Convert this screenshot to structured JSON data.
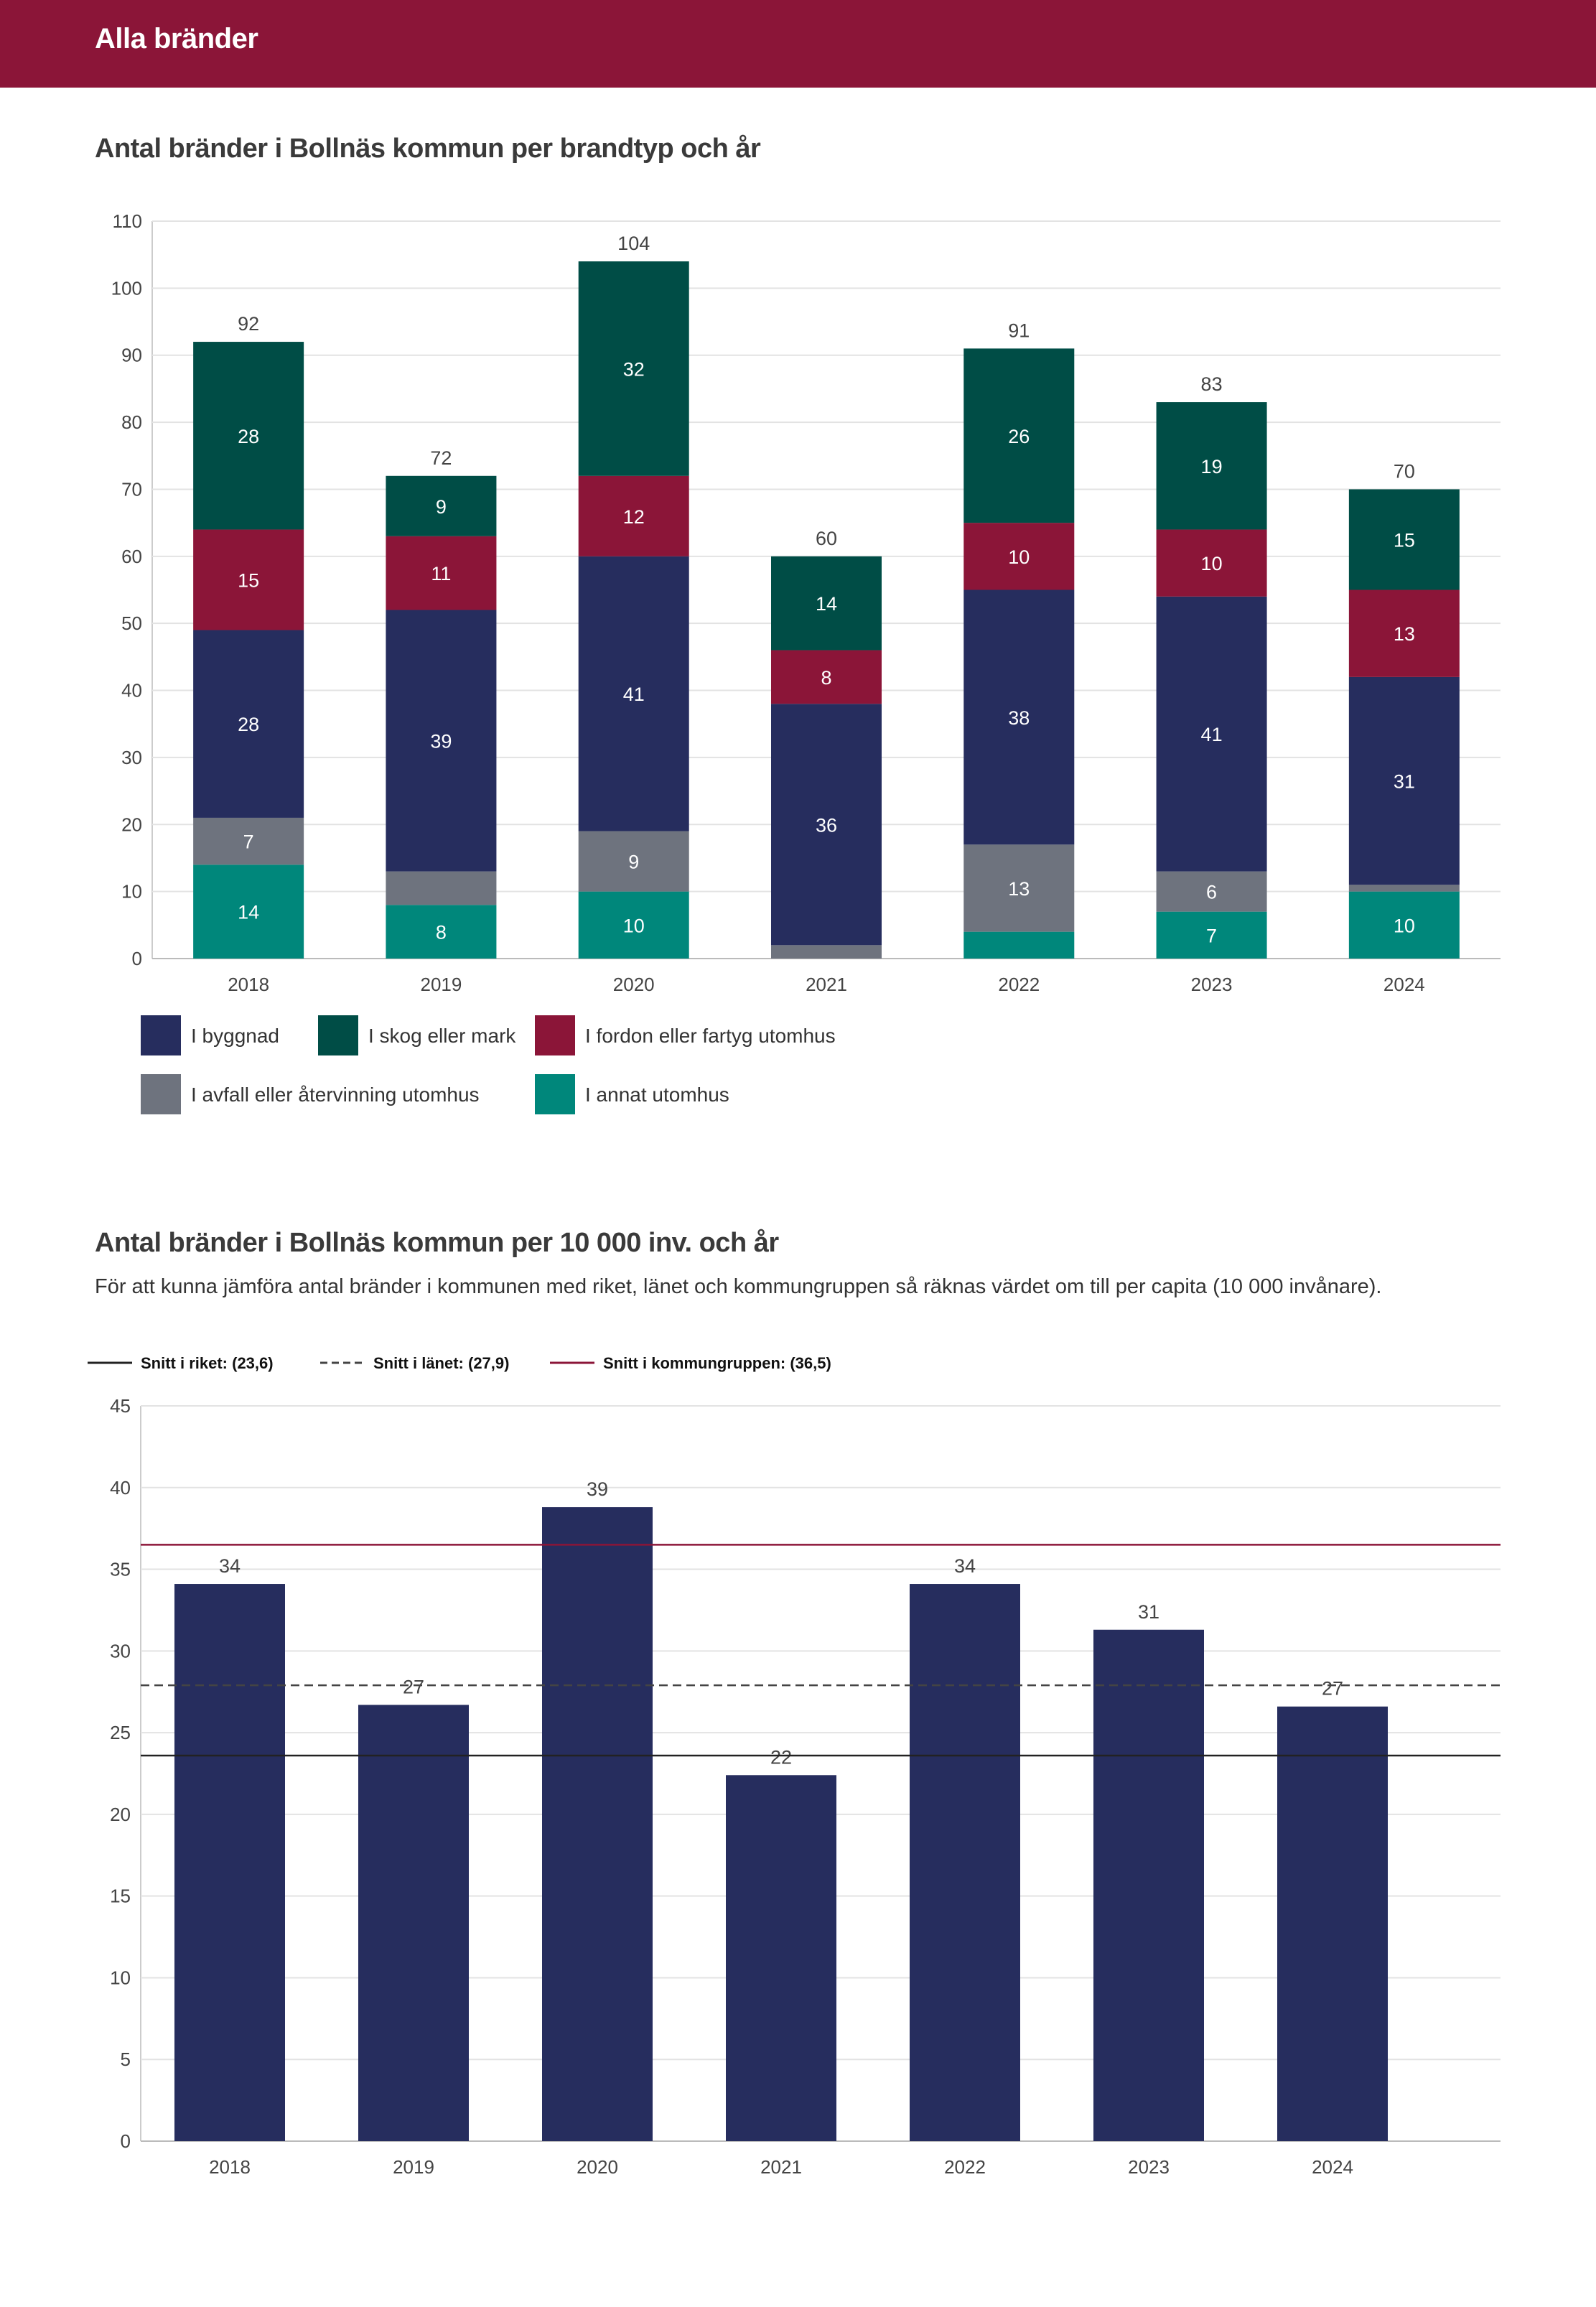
{
  "header": {
    "title": "Alla bränder"
  },
  "section1": {
    "title": "Antal bränder i Bollnäs kommun per brandtyp och år"
  },
  "section2": {
    "title": "Antal bränder i Bollnäs kommun per 10 000 inv. och år",
    "subtitle": "För att kunna jämföra antal bränder i kommunen med riket, länet och kommungruppen så räknas värdet om till per capita (10 000 invånare)."
  },
  "colors": {
    "header": "#8b1538",
    "byggnad": "#262d5e",
    "skog": "#004d46",
    "fordon": "#8b1538",
    "avfall": "#6e737e",
    "annat": "#00877b",
    "bar2": "#262d5e"
  },
  "chart_data": [
    {
      "type": "bar",
      "stacked": true,
      "title": "Antal bränder i Bollnäs kommun per brandtyp och år",
      "categories": [
        "2018",
        "2019",
        "2020",
        "2021",
        "2022",
        "2023",
        "2024"
      ],
      "ylim": [
        0,
        110
      ],
      "yticks": [
        0,
        10,
        20,
        30,
        40,
        50,
        60,
        70,
        80,
        90,
        100,
        110
      ],
      "totals": [
        92,
        72,
        104,
        60,
        91,
        83,
        70
      ],
      "series": [
        {
          "name": "I annat utomhus",
          "key": "annat",
          "values": [
            14,
            8,
            10,
            0,
            4,
            7,
            10
          ],
          "labels": [
            "14",
            "8",
            "10",
            "",
            "",
            "7",
            "10"
          ]
        },
        {
          "name": "I avfall eller återvinning utomhus",
          "key": "avfall",
          "values": [
            7,
            5,
            9,
            2,
            13,
            6,
            1
          ],
          "labels": [
            "7",
            "",
            "9",
            "",
            "13",
            "6",
            ""
          ]
        },
        {
          "name": "I byggnad",
          "key": "byggnad",
          "values": [
            28,
            39,
            41,
            36,
            38,
            41,
            31
          ],
          "labels": [
            "28",
            "39",
            "41",
            "36",
            "38",
            "41",
            "31"
          ]
        },
        {
          "name": "I fordon eller fartyg utomhus",
          "key": "fordon",
          "values": [
            15,
            11,
            12,
            8,
            10,
            10,
            13
          ],
          "labels": [
            "15",
            "11",
            "12",
            "8",
            "10",
            "10",
            "13"
          ]
        },
        {
          "name": "I skog eller mark",
          "key": "skog",
          "values": [
            28,
            9,
            32,
            14,
            26,
            19,
            15
          ],
          "labels": [
            "28",
            "9",
            "32",
            "14",
            "26",
            "19",
            "15"
          ]
        }
      ],
      "legend": [
        {
          "key": "byggnad",
          "label": "I byggnad"
        },
        {
          "key": "skog",
          "label": "I skog eller mark"
        },
        {
          "key": "fordon",
          "label": "I fordon eller fartyg utomhus"
        },
        {
          "key": "avfall",
          "label": "I avfall eller återvinning utomhus"
        },
        {
          "key": "annat",
          "label": "I annat utomhus"
        }
      ]
    },
    {
      "type": "bar",
      "title": "Antal bränder i Bollnäs kommun per 10 000 inv. och år",
      "categories": [
        "2018",
        "2019",
        "2020",
        "2021",
        "2022",
        "2023",
        "2024"
      ],
      "values": [
        34.1,
        26.7,
        38.8,
        22.4,
        34.1,
        31.3,
        26.6
      ],
      "value_labels": [
        "34",
        "27",
        "39",
        "22",
        "34",
        "31",
        "27"
      ],
      "ylim": [
        0,
        45
      ],
      "yticks": [
        0,
        5,
        10,
        15,
        20,
        25,
        30,
        35,
        40,
        45
      ],
      "reference_lines": [
        {
          "label": "Snitt i riket: (23,6)",
          "value": 23.6,
          "style": "solid",
          "color": "#222222"
        },
        {
          "label": "Snitt i länet: (27,9)",
          "value": 27.9,
          "style": "dashed",
          "color": "#444444"
        },
        {
          "label": "Snitt i kommungruppen: (36,5)",
          "value": 36.5,
          "style": "solid",
          "color": "#8b1538"
        }
      ]
    }
  ]
}
